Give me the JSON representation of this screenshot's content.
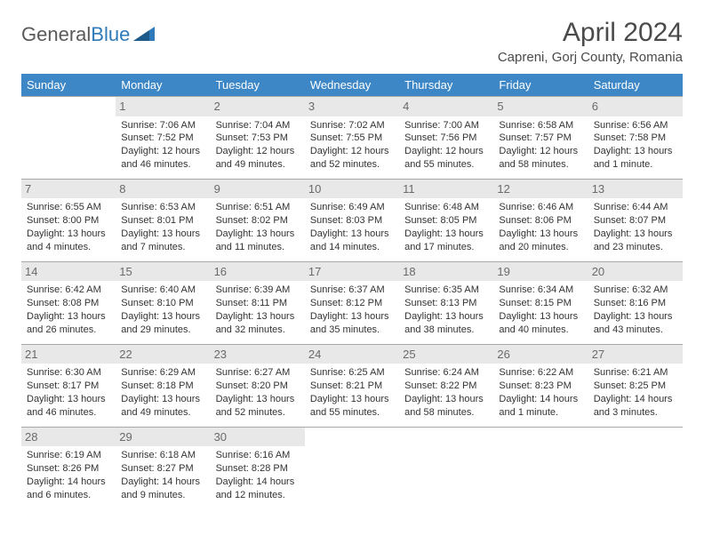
{
  "brand": {
    "name_part1": "General",
    "name_part2": "Blue"
  },
  "title": "April 2024",
  "location": "Capreni, Gorj County, Romania",
  "colors": {
    "header_bg": "#3d87c7",
    "header_text": "#ffffff",
    "daynum_bg": "#e8e8e8",
    "daynum_text": "#6a6a6a",
    "border": "#a8a8a8",
    "body_text": "#333333",
    "logo_gray": "#5a5a5a",
    "logo_blue": "#2f7ab8"
  },
  "weekdays": [
    "Sunday",
    "Monday",
    "Tuesday",
    "Wednesday",
    "Thursday",
    "Friday",
    "Saturday"
  ],
  "weeks": [
    [
      {
        "day": "",
        "sunrise": "",
        "sunset": "",
        "daylight1": "",
        "daylight2": ""
      },
      {
        "day": "1",
        "sunrise": "Sunrise: 7:06 AM",
        "sunset": "Sunset: 7:52 PM",
        "daylight1": "Daylight: 12 hours",
        "daylight2": "and 46 minutes."
      },
      {
        "day": "2",
        "sunrise": "Sunrise: 7:04 AM",
        "sunset": "Sunset: 7:53 PM",
        "daylight1": "Daylight: 12 hours",
        "daylight2": "and 49 minutes."
      },
      {
        "day": "3",
        "sunrise": "Sunrise: 7:02 AM",
        "sunset": "Sunset: 7:55 PM",
        "daylight1": "Daylight: 12 hours",
        "daylight2": "and 52 minutes."
      },
      {
        "day": "4",
        "sunrise": "Sunrise: 7:00 AM",
        "sunset": "Sunset: 7:56 PM",
        "daylight1": "Daylight: 12 hours",
        "daylight2": "and 55 minutes."
      },
      {
        "day": "5",
        "sunrise": "Sunrise: 6:58 AM",
        "sunset": "Sunset: 7:57 PM",
        "daylight1": "Daylight: 12 hours",
        "daylight2": "and 58 minutes."
      },
      {
        "day": "6",
        "sunrise": "Sunrise: 6:56 AM",
        "sunset": "Sunset: 7:58 PM",
        "daylight1": "Daylight: 13 hours",
        "daylight2": "and 1 minute."
      }
    ],
    [
      {
        "day": "7",
        "sunrise": "Sunrise: 6:55 AM",
        "sunset": "Sunset: 8:00 PM",
        "daylight1": "Daylight: 13 hours",
        "daylight2": "and 4 minutes."
      },
      {
        "day": "8",
        "sunrise": "Sunrise: 6:53 AM",
        "sunset": "Sunset: 8:01 PM",
        "daylight1": "Daylight: 13 hours",
        "daylight2": "and 7 minutes."
      },
      {
        "day": "9",
        "sunrise": "Sunrise: 6:51 AM",
        "sunset": "Sunset: 8:02 PM",
        "daylight1": "Daylight: 13 hours",
        "daylight2": "and 11 minutes."
      },
      {
        "day": "10",
        "sunrise": "Sunrise: 6:49 AM",
        "sunset": "Sunset: 8:03 PM",
        "daylight1": "Daylight: 13 hours",
        "daylight2": "and 14 minutes."
      },
      {
        "day": "11",
        "sunrise": "Sunrise: 6:48 AM",
        "sunset": "Sunset: 8:05 PM",
        "daylight1": "Daylight: 13 hours",
        "daylight2": "and 17 minutes."
      },
      {
        "day": "12",
        "sunrise": "Sunrise: 6:46 AM",
        "sunset": "Sunset: 8:06 PM",
        "daylight1": "Daylight: 13 hours",
        "daylight2": "and 20 minutes."
      },
      {
        "day": "13",
        "sunrise": "Sunrise: 6:44 AM",
        "sunset": "Sunset: 8:07 PM",
        "daylight1": "Daylight: 13 hours",
        "daylight2": "and 23 minutes."
      }
    ],
    [
      {
        "day": "14",
        "sunrise": "Sunrise: 6:42 AM",
        "sunset": "Sunset: 8:08 PM",
        "daylight1": "Daylight: 13 hours",
        "daylight2": "and 26 minutes."
      },
      {
        "day": "15",
        "sunrise": "Sunrise: 6:40 AM",
        "sunset": "Sunset: 8:10 PM",
        "daylight1": "Daylight: 13 hours",
        "daylight2": "and 29 minutes."
      },
      {
        "day": "16",
        "sunrise": "Sunrise: 6:39 AM",
        "sunset": "Sunset: 8:11 PM",
        "daylight1": "Daylight: 13 hours",
        "daylight2": "and 32 minutes."
      },
      {
        "day": "17",
        "sunrise": "Sunrise: 6:37 AM",
        "sunset": "Sunset: 8:12 PM",
        "daylight1": "Daylight: 13 hours",
        "daylight2": "and 35 minutes."
      },
      {
        "day": "18",
        "sunrise": "Sunrise: 6:35 AM",
        "sunset": "Sunset: 8:13 PM",
        "daylight1": "Daylight: 13 hours",
        "daylight2": "and 38 minutes."
      },
      {
        "day": "19",
        "sunrise": "Sunrise: 6:34 AM",
        "sunset": "Sunset: 8:15 PM",
        "daylight1": "Daylight: 13 hours",
        "daylight2": "and 40 minutes."
      },
      {
        "day": "20",
        "sunrise": "Sunrise: 6:32 AM",
        "sunset": "Sunset: 8:16 PM",
        "daylight1": "Daylight: 13 hours",
        "daylight2": "and 43 minutes."
      }
    ],
    [
      {
        "day": "21",
        "sunrise": "Sunrise: 6:30 AM",
        "sunset": "Sunset: 8:17 PM",
        "daylight1": "Daylight: 13 hours",
        "daylight2": "and 46 minutes."
      },
      {
        "day": "22",
        "sunrise": "Sunrise: 6:29 AM",
        "sunset": "Sunset: 8:18 PM",
        "daylight1": "Daylight: 13 hours",
        "daylight2": "and 49 minutes."
      },
      {
        "day": "23",
        "sunrise": "Sunrise: 6:27 AM",
        "sunset": "Sunset: 8:20 PM",
        "daylight1": "Daylight: 13 hours",
        "daylight2": "and 52 minutes."
      },
      {
        "day": "24",
        "sunrise": "Sunrise: 6:25 AM",
        "sunset": "Sunset: 8:21 PM",
        "daylight1": "Daylight: 13 hours",
        "daylight2": "and 55 minutes."
      },
      {
        "day": "25",
        "sunrise": "Sunrise: 6:24 AM",
        "sunset": "Sunset: 8:22 PM",
        "daylight1": "Daylight: 13 hours",
        "daylight2": "and 58 minutes."
      },
      {
        "day": "26",
        "sunrise": "Sunrise: 6:22 AM",
        "sunset": "Sunset: 8:23 PM",
        "daylight1": "Daylight: 14 hours",
        "daylight2": "and 1 minute."
      },
      {
        "day": "27",
        "sunrise": "Sunrise: 6:21 AM",
        "sunset": "Sunset: 8:25 PM",
        "daylight1": "Daylight: 14 hours",
        "daylight2": "and 3 minutes."
      }
    ],
    [
      {
        "day": "28",
        "sunrise": "Sunrise: 6:19 AM",
        "sunset": "Sunset: 8:26 PM",
        "daylight1": "Daylight: 14 hours",
        "daylight2": "and 6 minutes."
      },
      {
        "day": "29",
        "sunrise": "Sunrise: 6:18 AM",
        "sunset": "Sunset: 8:27 PM",
        "daylight1": "Daylight: 14 hours",
        "daylight2": "and 9 minutes."
      },
      {
        "day": "30",
        "sunrise": "Sunrise: 6:16 AM",
        "sunset": "Sunset: 8:28 PM",
        "daylight1": "Daylight: 14 hours",
        "daylight2": "and 12 minutes."
      },
      {
        "day": "",
        "sunrise": "",
        "sunset": "",
        "daylight1": "",
        "daylight2": ""
      },
      {
        "day": "",
        "sunrise": "",
        "sunset": "",
        "daylight1": "",
        "daylight2": ""
      },
      {
        "day": "",
        "sunrise": "",
        "sunset": "",
        "daylight1": "",
        "daylight2": ""
      },
      {
        "day": "",
        "sunrise": "",
        "sunset": "",
        "daylight1": "",
        "daylight2": ""
      }
    ]
  ]
}
